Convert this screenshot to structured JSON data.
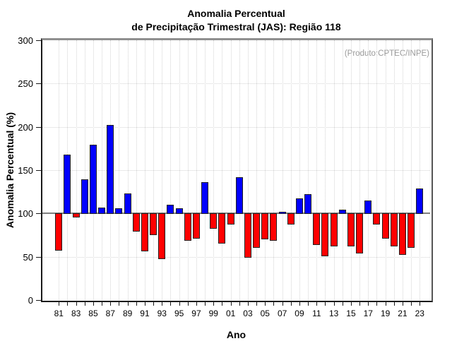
{
  "title": {
    "line1": "Anomalia Percentual",
    "line2": "de Precipitação Trimestral (JAS): Região 118"
  },
  "annotation": "(Produto:CPTEC/INPE)",
  "chart_data": {
    "type": "bar",
    "title": "Anomalia Percentual de Precipitação Trimestral (JAS): Região 118",
    "xlabel": "Ano",
    "ylabel": "Anomalia Percentual (%)",
    "ylim": [
      0,
      300
    ],
    "yticks": [
      0,
      50,
      100,
      150,
      200,
      250,
      300
    ],
    "baseline": 100,
    "grid": "dotted",
    "legend": "none",
    "x_tick_labels": [
      "81",
      "83",
      "85",
      "87",
      "89",
      "91",
      "93",
      "95",
      "97",
      "99",
      "01",
      "03",
      "05",
      "07",
      "09",
      "11",
      "13",
      "15",
      "17",
      "19",
      "21",
      "23"
    ],
    "years": [
      1981,
      1982,
      1983,
      1984,
      1985,
      1986,
      1987,
      1988,
      1989,
      1990,
      1991,
      1992,
      1993,
      1994,
      1995,
      1996,
      1997,
      1998,
      1999,
      2000,
      2001,
      2002,
      2003,
      2004,
      2005,
      2006,
      2007,
      2008,
      2009,
      2010,
      2011,
      2012,
      2013,
      2014,
      2015,
      2016,
      2017,
      2018,
      2019,
      2020,
      2021,
      2022,
      2023
    ],
    "values": [
      58,
      168,
      96,
      139,
      179,
      107,
      202,
      106,
      123,
      80,
      57,
      76,
      48,
      110,
      106,
      69,
      72,
      136,
      83,
      66,
      88,
      142,
      50,
      61,
      71,
      69,
      102,
      88,
      117,
      122,
      64,
      51,
      63,
      104,
      63,
      55,
      115,
      88,
      72,
      63,
      53,
      61,
      129
    ],
    "colors": {
      "above_baseline": "#0000ff",
      "below_baseline": "#ff0000",
      "bar_outline": "#1f1f1f",
      "baseline_line": "#808080",
      "gridline": "#d4d4d4",
      "frame_top": "#8f8f8f",
      "annotation_text": "#9a9a9a"
    }
  }
}
